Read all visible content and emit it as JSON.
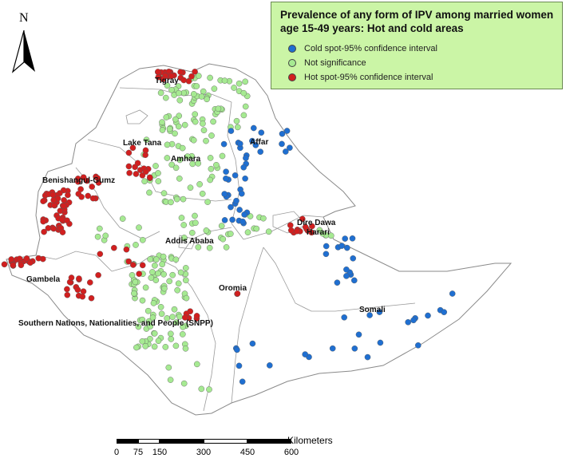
{
  "legend": {
    "title_line1": "Prevalence of any form of  IPV among married women",
    "title_line2": "age 15-49 years: Hot and cold areas",
    "items": [
      {
        "label": "Cold spot-95% confidence interval",
        "color": "#1f6fd1"
      },
      {
        "label": "Not significance",
        "color": "#a6ea92"
      },
      {
        "label": "Hot spot-95% confidence interval",
        "color": "#d11f1f"
      }
    ]
  },
  "north_arrow": {
    "letter": "N"
  },
  "regions": [
    {
      "id": "tigray",
      "name": "Tigray"
    },
    {
      "id": "lake-tana",
      "name": "Lake Tana"
    },
    {
      "id": "amhara",
      "name": "Amhara"
    },
    {
      "id": "affar",
      "name": "Affar"
    },
    {
      "id": "benishangul",
      "name": "Benishangul-Gumz"
    },
    {
      "id": "addis",
      "name": "Addis Ababa"
    },
    {
      "id": "dire-dawa",
      "name": "Dire Dawa"
    },
    {
      "id": "harari",
      "name": "Harari"
    },
    {
      "id": "gambela",
      "name": "Gambela"
    },
    {
      "id": "oromia",
      "name": "Oromia"
    },
    {
      "id": "somali",
      "name": "Somali"
    },
    {
      "id": "snnp",
      "name": "Southern Nations, Nationalities, and People (SNPP)"
    }
  ],
  "scale_bar": {
    "unit": "Kilometers",
    "ticks": [
      "0",
      "75",
      "150",
      "300",
      "450",
      "600"
    ]
  },
  "colors": {
    "cold": "#1f6fd1",
    "not_significant": "#a6ea92",
    "hot": "#d11f1f",
    "legend_bg": "#cbf5a6"
  }
}
